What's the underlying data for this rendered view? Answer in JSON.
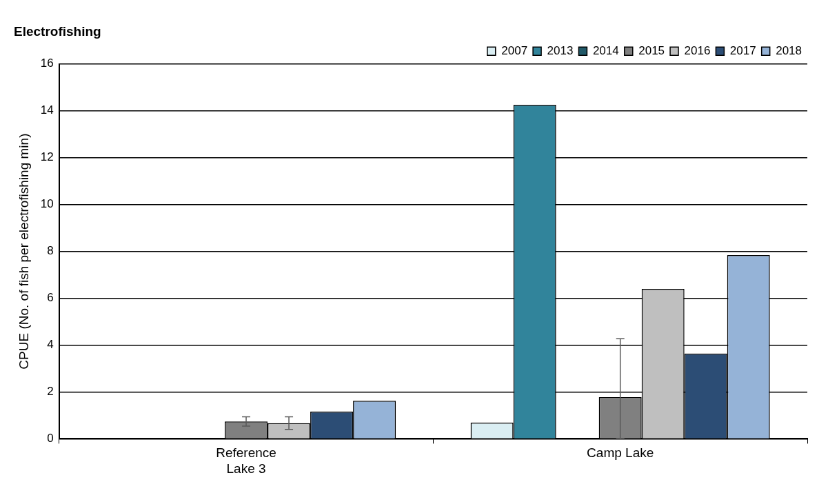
{
  "chart_data": {
    "type": "bar",
    "title": "Electrofishing",
    "ylabel": "CPUE (No. of fish per electrofishing min)",
    "categories": [
      "Reference Lake 3",
      "Camp Lake"
    ],
    "series": [
      {
        "name": "2007",
        "color": "#daeef3",
        "values": [
          null,
          0.69
        ]
      },
      {
        "name": "2013",
        "color": "#31849b",
        "values": [
          null,
          14.26
        ]
      },
      {
        "name": "2014",
        "color": "#215968",
        "values": [
          null,
          null
        ]
      },
      {
        "name": "2015",
        "color": "#808080",
        "values": [
          0.74,
          1.78
        ],
        "errors": [
          0.2,
          [
            0,
            4.27
          ]
        ]
      },
      {
        "name": "2016",
        "color": "#bfbfbf",
        "values": [
          0.67,
          6.4
        ],
        "errors": [
          0.27,
          null
        ]
      },
      {
        "name": "2017",
        "color": "#2c4d75",
        "values": [
          1.16,
          3.64
        ]
      },
      {
        "name": "2018",
        "color": "#95b3d7",
        "values": [
          1.62,
          7.84
        ]
      }
    ],
    "ylim": [
      0,
      16
    ],
    "yticks": [
      0,
      2,
      4,
      6,
      8,
      10,
      12,
      14,
      16
    ],
    "grid": "y",
    "legend": "top right"
  }
}
